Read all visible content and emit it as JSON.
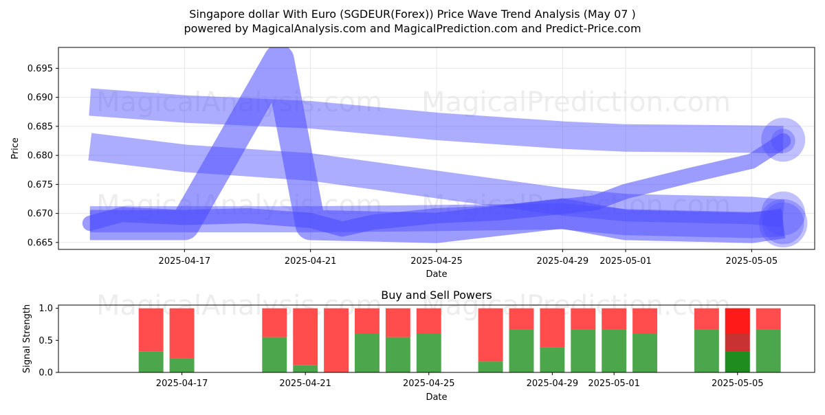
{
  "header": {
    "title": "Singapore dollar With Euro (SGDEUR(Forex)) Price Wave Trend Analysis (May 07 )",
    "subtitle": "powered by MagicalAnalysis.com and MagicalPrediction.com and Predict-Price.com"
  },
  "watermarks": [
    "MagicalAnalysis.com",
    "MagicalPrediction.com"
  ],
  "colors": {
    "wave": "#4a4aff",
    "buy": "#4ca64c",
    "sell": "#ff4c4c",
    "buy_strong": "#1e8c1e",
    "sell_strong": "#ff1a1a",
    "mixed": "#c83232"
  },
  "chart_data": [
    {
      "type": "line",
      "ylabel": "Price",
      "xlabel": "Date",
      "ylim": [
        0.6638,
        0.6986
      ],
      "xlim": [
        "2025-04-13",
        "2025-05-07"
      ],
      "x_ticks": [
        "2025-04-17",
        "2025-04-21",
        "2025-04-25",
        "2025-04-29",
        "2025-05-01",
        "2025-05-05"
      ],
      "y_ticks": [
        0.665,
        0.67,
        0.675,
        0.68,
        0.685,
        0.69,
        0.695
      ],
      "grid": true,
      "series": [
        {
          "x": [
            "2025-04-14",
            "2025-04-17",
            "2025-04-21",
            "2025-04-25",
            "2025-04-29",
            "2025-05-01",
            "2025-05-05",
            "2025-05-06"
          ],
          "y": [
            0.6892,
            0.688,
            0.687,
            0.685,
            0.6835,
            0.683,
            0.6828,
            0.6827
          ]
        },
        {
          "x": [
            "2025-04-14",
            "2025-04-17",
            "2025-04-21",
            "2025-04-25",
            "2025-04-29",
            "2025-05-01",
            "2025-05-05",
            "2025-05-06"
          ],
          "y": [
            0.6815,
            0.6795,
            0.678,
            0.675,
            0.672,
            0.671,
            0.6705,
            0.67
          ]
        },
        {
          "x": [
            "2025-04-14",
            "2025-04-17",
            "2025-04-20",
            "2025-04-21",
            "2025-04-25",
            "2025-04-29",
            "2025-05-01",
            "2025-05-05",
            "2025-05-06"
          ],
          "y": [
            0.668,
            0.668,
            0.6965,
            0.668,
            0.6675,
            0.67,
            0.668,
            0.6675,
            0.6683
          ]
        },
        {
          "x": [
            "2025-04-14",
            "2025-04-17",
            "2025-04-21",
            "2025-04-25",
            "2025-04-29",
            "2025-05-01",
            "2025-05-05",
            "2025-05-06"
          ],
          "y": [
            0.669,
            0.669,
            0.669,
            0.6692,
            0.6695,
            0.6685,
            0.668,
            0.6683
          ]
        },
        {
          "x": [
            "2025-04-14",
            "2025-04-15",
            "2025-04-17",
            "2025-04-19",
            "2025-04-21",
            "2025-04-22",
            "2025-04-23",
            "2025-04-25",
            "2025-04-27",
            "2025-04-29",
            "2025-04-30",
            "2025-05-01",
            "2025-05-03",
            "2025-05-05",
            "2025-05-06"
          ],
          "y": [
            0.6683,
            0.6698,
            0.6693,
            0.6696,
            0.6688,
            0.6673,
            0.6685,
            0.6696,
            0.6701,
            0.6712,
            0.6718,
            0.6738,
            0.6765,
            0.679,
            0.6825
          ]
        }
      ]
    },
    {
      "type": "bar",
      "title": "Buy and Sell Powers",
      "ylabel": "Signal Strength",
      "xlabel": "Date",
      "ylim": [
        0,
        1.05
      ],
      "y_ticks": [
        0.0,
        0.5,
        1.0
      ],
      "x_ticks": [
        "2025-04-17",
        "2025-04-21",
        "2025-04-25",
        "2025-04-29",
        "2025-05-01",
        "2025-05-05"
      ],
      "categories": [
        "2025-04-16",
        "2025-04-17",
        "2025-04-20",
        "2025-04-21",
        "2025-04-22",
        "2025-04-23",
        "2025-04-24",
        "2025-04-25",
        "2025-04-27",
        "2025-04-28",
        "2025-04-29",
        "2025-04-30",
        "2025-05-01",
        "2025-05-02",
        "2025-05-04",
        "2025-05-05",
        "2025-05-06"
      ],
      "series": [
        {
          "name": "buy",
          "values": [
            0.33,
            0.22,
            0.55,
            0.11,
            0.0,
            0.6,
            0.55,
            0.6,
            0.17,
            0.67,
            0.39,
            0.67,
            0.67,
            0.6,
            0.67,
            0.33,
            0.67
          ]
        },
        {
          "name": "sell",
          "values": [
            0.67,
            0.78,
            0.45,
            0.89,
            1.0,
            0.4,
            0.45,
            0.4,
            0.83,
            0.33,
            0.61,
            0.33,
            0.33,
            0.4,
            0.33,
            0.67,
            0.33
          ]
        }
      ]
    }
  ]
}
